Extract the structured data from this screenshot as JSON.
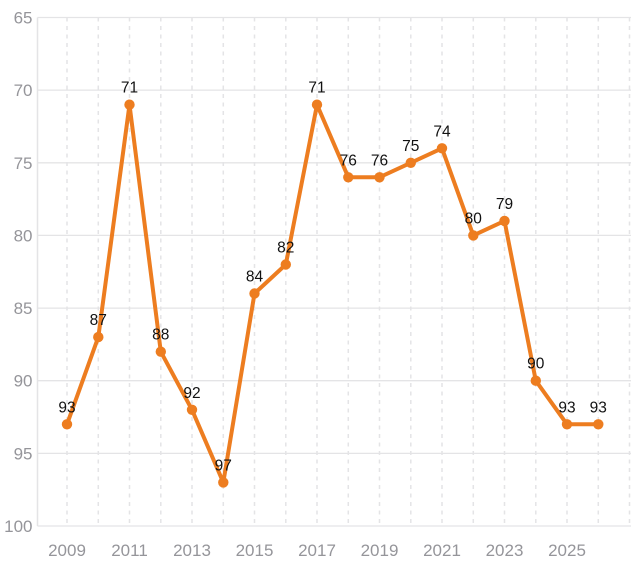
{
  "chart_data": {
    "type": "line",
    "title": "",
    "x": [
      2009,
      2010,
      2011,
      2012,
      2013,
      2014,
      2015,
      2016,
      2017,
      2018,
      2019,
      2020,
      2021,
      2022,
      2023,
      2024,
      2025,
      2026
    ],
    "values": [
      93,
      87,
      71,
      88,
      92,
      97,
      84,
      82,
      71,
      76,
      76,
      75,
      74,
      80,
      79,
      90,
      93,
      93
    ],
    "point_labels": [
      "93",
      "87",
      "71",
      "88",
      "92",
      "97",
      "84",
      "82",
      "71",
      "76",
      "76",
      "75",
      "74",
      "80",
      "79",
      "90",
      "93",
      "93"
    ],
    "y_ticks": [
      65,
      70,
      75,
      80,
      85,
      90,
      95,
      100
    ],
    "x_tick_years": [
      2009,
      2011,
      2013,
      2015,
      2017,
      2019,
      2021,
      2023,
      2025
    ],
    "y_axis": {
      "inverted": true,
      "min": 65,
      "max": 100
    },
    "grid": {
      "horizontal": "solid",
      "vertical": "dashed",
      "vertical_extends_to_year": 2027
    },
    "legend": "none",
    "colors": {
      "line": "#ED7D20",
      "point": "#ED7D20",
      "value_label": "#111111",
      "tick_label": "#95959A",
      "grid_line": "#E4E4E6",
      "background": "#FFFFFF"
    }
  }
}
